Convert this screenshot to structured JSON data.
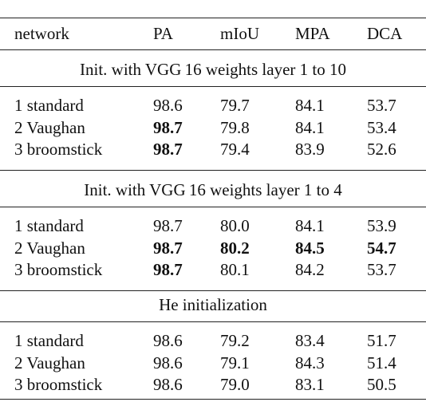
{
  "table": {
    "header": [
      "network",
      "PA",
      "mIoU",
      "MPA",
      "DCA"
    ],
    "sections": [
      {
        "title": "Init. with VGG 16 weights layer 1 to 10",
        "rows": [
          {
            "cells": [
              "1 standard",
              "98.6",
              "79.7",
              "84.1",
              "53.7"
            ],
            "bold": []
          },
          {
            "cells": [
              "2 Vaughan",
              "98.7",
              "79.8",
              "84.1",
              "53.4"
            ],
            "bold": [
              1
            ]
          },
          {
            "cells": [
              "3 broomstick",
              "98.7",
              "79.4",
              "83.9",
              "52.6"
            ],
            "bold": [
              1
            ]
          }
        ]
      },
      {
        "title": "Init. with VGG 16 weights layer 1 to 4",
        "rows": [
          {
            "cells": [
              "1 standard",
              "98.7",
              "80.0",
              "84.1",
              "53.9"
            ],
            "bold": []
          },
          {
            "cells": [
              "2 Vaughan",
              "98.7",
              "80.2",
              "84.5",
              "54.7"
            ],
            "bold": [
              1,
              2,
              3,
              4
            ]
          },
          {
            "cells": [
              "3 broomstick",
              "98.7",
              "80.1",
              "84.2",
              "53.7"
            ],
            "bold": [
              1
            ]
          }
        ]
      },
      {
        "title": "He initialization",
        "rows": [
          {
            "cells": [
              "1 standard",
              "98.6",
              "79.2",
              "83.4",
              "51.7"
            ],
            "bold": []
          },
          {
            "cells": [
              "2 Vaughan",
              "98.6",
              "79.1",
              "84.3",
              "51.4"
            ],
            "bold": []
          },
          {
            "cells": [
              "3 broomstick",
              "98.6",
              "79.0",
              "83.1",
              "50.5"
            ],
            "bold": []
          }
        ]
      }
    ]
  }
}
